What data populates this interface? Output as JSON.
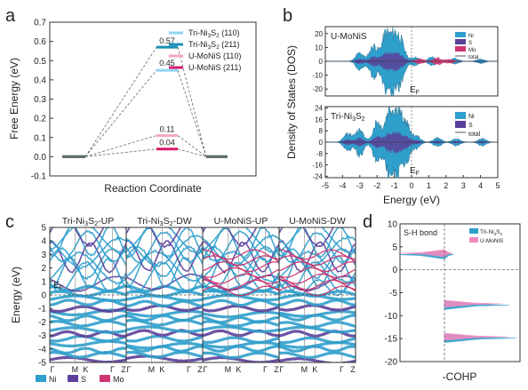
{
  "chart_data": [
    {
      "panel": "a",
      "type": "line",
      "xlabel": "Reaction Coordinate",
      "ylabel": "Free Energy (eV)",
      "ylim": [
        -0.1,
        0.7
      ],
      "yticks": [
        "-0.1",
        "0.0",
        "0.1",
        "0.2",
        "0.3",
        "0.4",
        "0.5",
        "0.6",
        "0.7"
      ],
      "ytick_values": [
        -0.1,
        0.0,
        0.1,
        0.2,
        0.3,
        0.4,
        0.5,
        0.6,
        0.7
      ],
      "legend_position": "top-right",
      "series": [
        {
          "name": "Tri-Ni3S2 (110)",
          "values": [
            0,
            0.45,
            0
          ],
          "color": "#8fd3f4",
          "label": "0.45"
        },
        {
          "name": "Tri-Ni3S2 (211)",
          "values": [
            0,
            0.57,
            0
          ],
          "color": "#1e8fb8",
          "label": "0.57"
        },
        {
          "name": "U-MoNiS (110)",
          "values": [
            0,
            0.11,
            0
          ],
          "color": "#f2a6c4",
          "label": "0.11"
        },
        {
          "name": "U-MoNiS (211)",
          "values": [
            0,
            0.04,
            0
          ],
          "color": "#d81b6a",
          "label": "0.04"
        }
      ],
      "legend": [
        {
          "pre": "Tri-Ni",
          "sub1": "3",
          "mid": "S",
          "sub2": "2",
          "post": " (110)"
        },
        {
          "pre": "Tri-Ni",
          "sub1": "3",
          "mid": "S",
          "sub2": "2",
          "post": " (211)"
        },
        {
          "pre": "U-MoNiS (110)",
          "sub1": "",
          "mid": "",
          "sub2": "",
          "post": ""
        },
        {
          "pre": "U-MoNiS (211)",
          "sub1": "",
          "mid": "",
          "sub2": "",
          "post": ""
        }
      ]
    },
    {
      "panel": "b",
      "type": "area",
      "xlabel": "Energy (eV)",
      "ylabel": "Density of States (DOS)",
      "xlim": [
        -5,
        5
      ],
      "xticks": [
        "-5",
        "-4",
        "-3",
        "-2",
        "-1",
        "0",
        "1",
        "2",
        "3",
        "4",
        "5"
      ],
      "xtick_values": [
        -5,
        -4,
        -3,
        -2,
        -1,
        0,
        1,
        2,
        3,
        4,
        5
      ],
      "fermi_label": "E",
      "fermi_sub": "F",
      "subplots": [
        {
          "title": "U-MoNiS",
          "ylim": [
            -25,
            25
          ],
          "yticks": [
            "20",
            "10",
            "0",
            "-10",
            "-20"
          ],
          "ytick_values": [
            20,
            10,
            0,
            -10,
            -20
          ],
          "series": [
            {
              "name": "Ni",
              "color": "#2f9fcc"
            },
            {
              "name": "S",
              "color": "#5b3f9a"
            },
            {
              "name": "Mo",
              "color": "#d0336f"
            },
            {
              "name": "total",
              "color": "#555555"
            }
          ],
          "dos_peaks": [
            {
              "e": -3.0,
              "h": 6
            },
            {
              "e": -2.2,
              "h": 11
            },
            {
              "e": -1.5,
              "h": 19
            },
            {
              "e": -1.0,
              "h": 17
            },
            {
              "e": -0.6,
              "h": 12
            },
            {
              "e": 0.2,
              "h": 3
            },
            {
              "e": 1.2,
              "h": 3
            },
            {
              "e": 2.5,
              "h": 2
            },
            {
              "e": 4.0,
              "h": 1.5
            }
          ],
          "mo_peaks": [
            {
              "e": 0.5,
              "h": 2
            },
            {
              "e": 1.5,
              "h": 2.5
            },
            {
              "e": 2.2,
              "h": 1.5
            }
          ]
        },
        {
          "title_pre": "Tri-Ni",
          "title_sub1": "3",
          "title_mid": "S",
          "title_sub2": "2",
          "ylim": [
            -25,
            25
          ],
          "yticks": [
            "24",
            "16",
            "8",
            "0",
            "-8",
            "-16",
            "-24"
          ],
          "ytick_values": [
            24,
            16,
            8,
            0,
            -8,
            -16,
            -24
          ],
          "series": [
            {
              "name": "Ni",
              "color": "#2f9fcc"
            },
            {
              "name": "S",
              "color": "#5b3f9a"
            },
            {
              "name": "total",
              "color": "#555555"
            }
          ],
          "dos_peaks": [
            {
              "e": -3.7,
              "h": 6
            },
            {
              "e": -3.0,
              "h": 9
            },
            {
              "e": -2.0,
              "h": 14
            },
            {
              "e": -1.3,
              "h": 21
            },
            {
              "e": -0.8,
              "h": 20
            },
            {
              "e": -0.3,
              "h": 12
            },
            {
              "e": 0.3,
              "h": 4
            },
            {
              "e": 1.5,
              "h": 3
            },
            {
              "e": 2.6,
              "h": 2.5
            },
            {
              "e": 4.1,
              "h": 2.5
            }
          ]
        }
      ]
    },
    {
      "panel": "c",
      "type": "line",
      "ylabel": "Energy (eV)",
      "ylim": [
        -5,
        5
      ],
      "yticks": [
        "5",
        "4",
        "3",
        "2",
        "1",
        "0",
        "-1",
        "-2",
        "-3",
        "-4",
        "-5"
      ],
      "ytick_values": [
        5,
        4,
        3,
        2,
        1,
        0,
        -1,
        -2,
        -3,
        -4,
        -5
      ],
      "fermi_label": "E",
      "fermi_sub": "F",
      "subplots": [
        {
          "title_pre": "Tri-Ni",
          "title_sub1": "3",
          "title_mid": "S",
          "title_sub2": "2",
          "title_post": "-UP",
          "mo": false
        },
        {
          "title_pre": "Tri-Ni",
          "title_sub1": "3",
          "title_mid": "S",
          "title_sub2": "2",
          "title_post": "-DW",
          "mo": false
        },
        {
          "title_pre": "U-MoNiS-UP",
          "title_sub1": "",
          "title_mid": "",
          "title_sub2": "",
          "title_post": "",
          "mo": true
        },
        {
          "title_pre": "U-MoNiS-DW",
          "title_sub1": "",
          "title_mid": "",
          "title_sub2": "",
          "title_post": "",
          "mo": true
        }
      ],
      "kpoints": [
        "Γ",
        "M",
        "K",
        "Γ",
        "Z"
      ],
      "legend": [
        {
          "name": "Ni",
          "color": "#2f9fcc"
        },
        {
          "name": "S",
          "color": "#5b3f9a"
        },
        {
          "name": "Mo",
          "color": "#d0336f"
        }
      ]
    },
    {
      "panel": "d",
      "type": "area",
      "title": "S-H bond",
      "xlabel": "-COHP",
      "ylim": [
        -20,
        10
      ],
      "yticks": [
        "10",
        "5",
        "0",
        "-5",
        "-10",
        "-15",
        "-20"
      ],
      "ytick_values": [
        10,
        5,
        0,
        -5,
        -10,
        -15,
        -20
      ],
      "legend": [
        {
          "pre": "Tri-Ni",
          "sub1": "3",
          "mid": "S",
          "sub2": "2",
          "color": "#2f9fcc"
        },
        {
          "pre": "U-MoNiS",
          "sub1": "",
          "mid": "",
          "sub2": "",
          "color": "#f08ac0"
        }
      ],
      "peaks": [
        {
          "e": 3.3,
          "left": 1.0,
          "right": 0.12
        },
        {
          "e": -7.7,
          "left": 0,
          "right": 0.85
        },
        {
          "e": -14.9,
          "left": 0,
          "right": 0.95
        }
      ]
    }
  ],
  "panel_labels": [
    "a",
    "b",
    "c",
    "d"
  ]
}
